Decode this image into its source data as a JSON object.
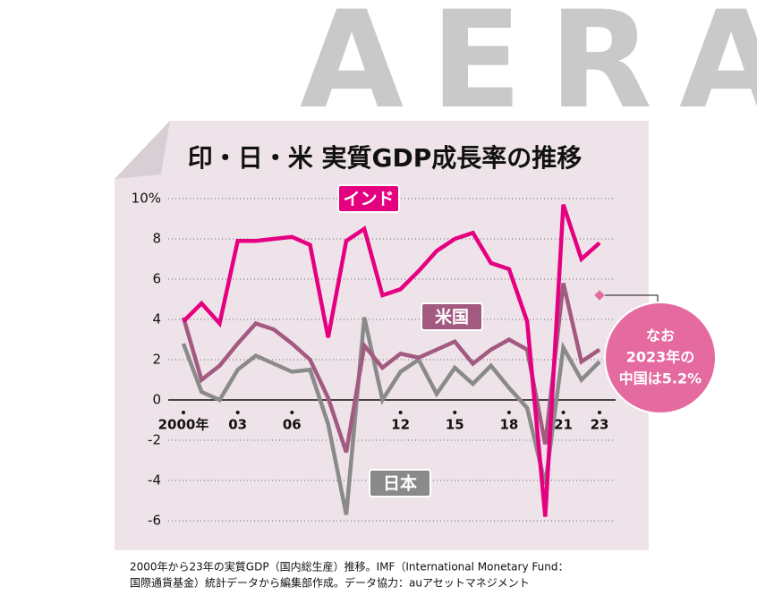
{
  "logo": "AERA",
  "chart_data": {
    "type": "line",
    "title": "印・日・米 実質GDP成長率の推移",
    "x": [
      2000,
      2001,
      2002,
      2003,
      2004,
      2005,
      2006,
      2007,
      2008,
      2009,
      2010,
      2011,
      2012,
      2013,
      2014,
      2015,
      2016,
      2017,
      2018,
      2019,
      2020,
      2021,
      2022,
      2023
    ],
    "series": [
      {
        "name": "インド",
        "color": "#e4007f",
        "values": [
          3.9,
          4.8,
          3.8,
          7.9,
          7.9,
          8.0,
          8.1,
          7.7,
          3.1,
          7.9,
          8.5,
          5.2,
          5.5,
          6.4,
          7.4,
          8.0,
          8.3,
          6.8,
          6.5,
          3.9,
          -5.8,
          9.7,
          7.0,
          7.8
        ]
      },
      {
        "name": "米国",
        "color": "#a35a80",
        "values": [
          4.1,
          1.0,
          1.7,
          2.8,
          3.8,
          3.5,
          2.8,
          2.0,
          0.1,
          -2.6,
          2.7,
          1.6,
          2.3,
          2.1,
          2.5,
          2.9,
          1.8,
          2.5,
          3.0,
          2.5,
          -2.2,
          5.8,
          1.9,
          2.5
        ]
      },
      {
        "name": "日本",
        "color": "#8a8a8a",
        "values": [
          2.8,
          0.4,
          0.0,
          1.5,
          2.2,
          1.8,
          1.4,
          1.5,
          -1.2,
          -5.7,
          4.1,
          0.0,
          1.4,
          2.0,
          0.3,
          1.6,
          0.8,
          1.7,
          0.6,
          -0.4,
          -4.2,
          2.6,
          1.0,
          1.9
        ]
      }
    ],
    "xlim": [
      2000,
      2023
    ],
    "xticks": [
      {
        "value": 2000,
        "label": "2000年"
      },
      {
        "value": 2003,
        "label": "03"
      },
      {
        "value": 2006,
        "label": "06"
      },
      {
        "value": 2012,
        "label": "12"
      },
      {
        "value": 2015,
        "label": "15"
      },
      {
        "value": 2018,
        "label": "18"
      },
      {
        "value": 2021,
        "label": "21"
      },
      {
        "value": 2023,
        "label": "23"
      }
    ],
    "ylim": [
      -6,
      10
    ],
    "yticks": [
      -6,
      -4,
      -2,
      0,
      2,
      4,
      6,
      8,
      {
        "value": 10,
        "label": "10%"
      }
    ],
    "grid": true,
    "annotation": {
      "x": 2023,
      "value": 5.2,
      "color": "#e46aa0",
      "lines": [
        "なお",
        "2023年の",
        "中国は5.2%"
      ]
    },
    "footnote": [
      "2000年から23年の実質GDP（国内総生産）推移。IMF（International Monetary Fund：",
      "国際通貨基金）統計データから編集部作成。データ協力：auアセットマネジメント"
    ]
  }
}
